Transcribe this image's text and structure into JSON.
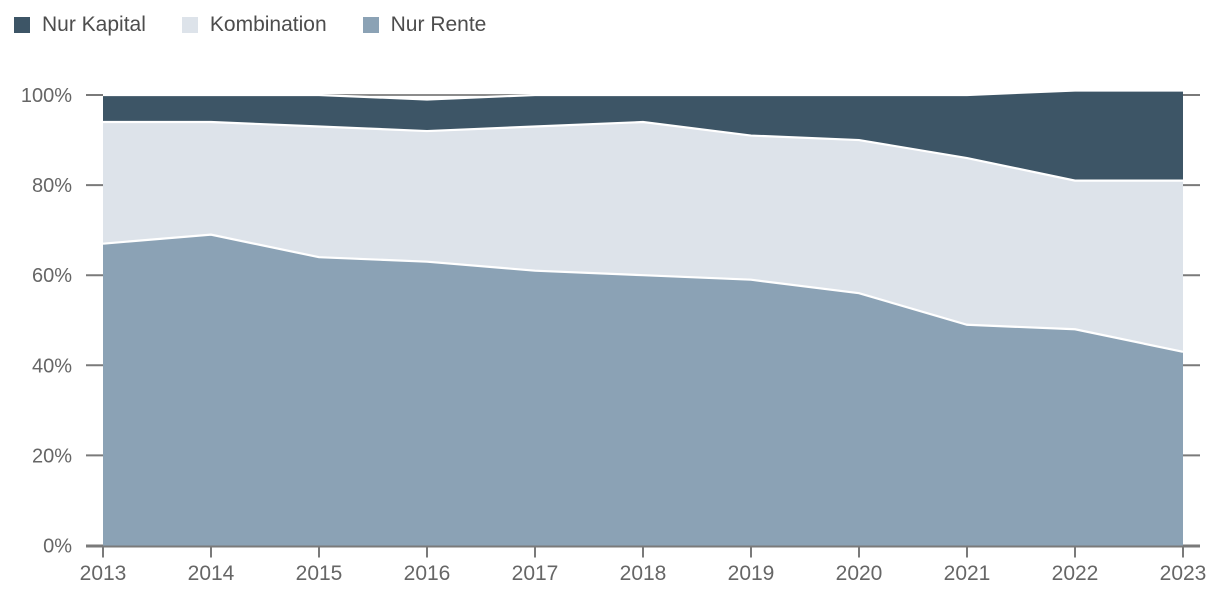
{
  "legend": {
    "items": [
      {
        "label": "Nur Kapital",
        "color": "#3d5566"
      },
      {
        "label": "Kombination",
        "color": "#dde3ea"
      },
      {
        "label": "Nur Rente",
        "color": "#8ba2b5"
      }
    ]
  },
  "chart_data": {
    "type": "area",
    "stacked": true,
    "unit": "percent",
    "title": "",
    "xlabel": "",
    "ylabel": "",
    "x": [
      2013,
      2014,
      2015,
      2016,
      2017,
      2018,
      2019,
      2020,
      2021,
      2022,
      2023
    ],
    "x_tick_labels": [
      "2013",
      "2014",
      "2015",
      "2016",
      "2017",
      "2018",
      "2019",
      "2020",
      "2021",
      "2022",
      "2023"
    ],
    "y_tick_labels": [
      "0%",
      "20%",
      "40%",
      "60%",
      "80%",
      "100%"
    ],
    "y_ticks": [
      0,
      20,
      40,
      60,
      80,
      100
    ],
    "ylim": [
      0,
      100
    ],
    "grid": "horizontal line at 100% only",
    "legend_position": "top-left",
    "stack_order_bottom_to_top": [
      "Nur Rente",
      "Kombination",
      "Nur Kapital"
    ],
    "series": [
      {
        "name": "Nur Rente",
        "color": "#8ba2b5",
        "values": [
          67,
          69,
          64,
          63,
          61,
          60,
          59,
          56,
          49,
          48,
          43
        ]
      },
      {
        "name": "Kombination",
        "color": "#dde3ea",
        "values": [
          27,
          25,
          29,
          29,
          32,
          34,
          32,
          34,
          37,
          33,
          38
        ]
      },
      {
        "name": "Nur Kapital",
        "color": "#3d5566",
        "values": [
          6,
          6,
          7,
          7,
          7,
          6,
          9,
          10,
          14,
          20,
          20
        ]
      }
    ],
    "cumulative_top_percent": [
      100,
      100,
      100,
      99,
      100,
      100,
      100,
      100,
      100,
      101,
      101
    ]
  },
  "style": {
    "axis_line_color": "#7a7a7a",
    "tick_label_color": "#666666",
    "gridline_color": "#8c8c8c",
    "boundary_stroke_color": "#ffffff",
    "background_color": "#ffffff"
  }
}
